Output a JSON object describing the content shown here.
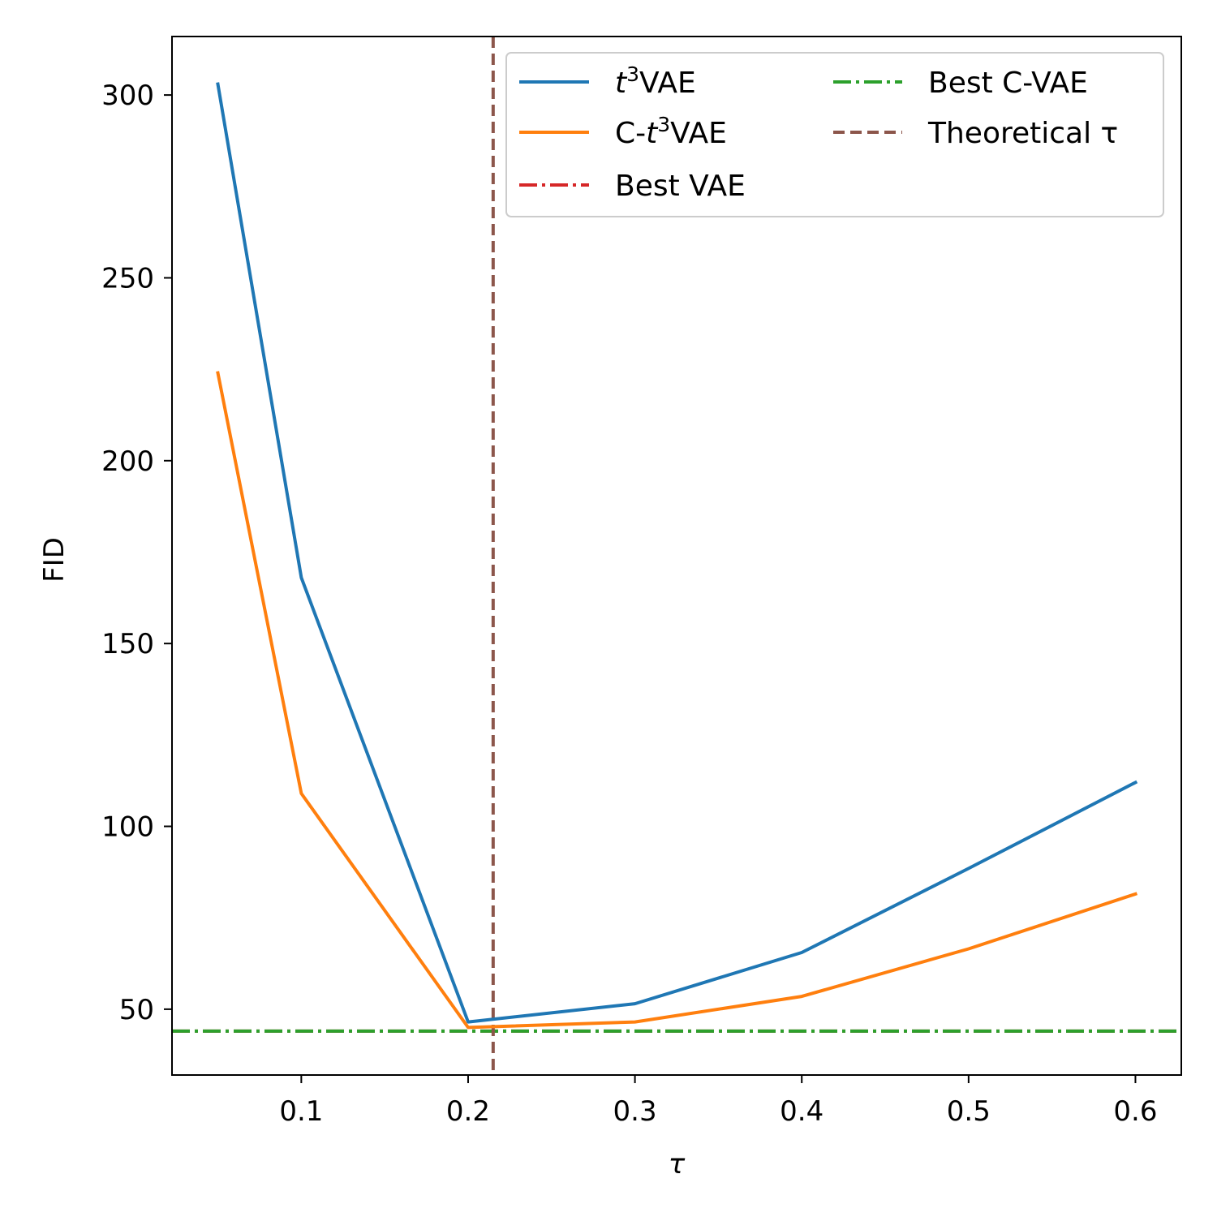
{
  "chart_data": {
    "type": "line",
    "title": "",
    "xlabel": "τ",
    "ylabel": "FID",
    "xlim": [
      0.0225,
      0.6275
    ],
    "ylim": [
      32,
      316
    ],
    "xticks": [
      0.1,
      0.2,
      0.3,
      0.4,
      0.5,
      0.6
    ],
    "xtick_labels": [
      "0.1",
      "0.2",
      "0.3",
      "0.4",
      "0.5",
      "0.6"
    ],
    "yticks": [
      50,
      100,
      150,
      200,
      250,
      300
    ],
    "ytick_labels": [
      "50",
      "100",
      "150",
      "200",
      "250",
      "300"
    ],
    "grid": false,
    "legend_placement": "top-right",
    "x": [
      0.05,
      0.1,
      0.2,
      0.3,
      0.4,
      0.5,
      0.6
    ],
    "series": [
      {
        "name": "t³VAE",
        "label_italic": "t",
        "label_sup": "3",
        "label_rest": "VAE",
        "color": "#1f77b4",
        "style": "solid",
        "values": [
          303,
          168,
          46.5,
          51.5,
          65.5,
          88.5,
          112
        ]
      },
      {
        "name": "C-t³VAE",
        "label_prefix": "C-",
        "label_italic": "t",
        "label_sup": "3",
        "label_rest": "VAE",
        "color": "#ff7f0e",
        "style": "solid",
        "values": [
          224,
          109,
          45,
          46.5,
          53.5,
          66.5,
          81.5
        ]
      }
    ],
    "reference_lines": [
      {
        "name": "Best VAE",
        "orientation": "horizontal",
        "value": 44,
        "color": "#d62728",
        "style": "dashdot"
      },
      {
        "name": "Best C-VAE",
        "orientation": "horizontal",
        "value": 44,
        "color": "#2ca02c",
        "style": "dashdot"
      },
      {
        "name": "Theoretical τ",
        "orientation": "vertical",
        "value": 0.215,
        "color": "#8c564b",
        "style": "dashed"
      }
    ],
    "legend": {
      "columns": 2,
      "entries": [
        "t³VAE",
        "C-t³VAE",
        "Best VAE",
        "Best C-VAE",
        "Theoretical τ"
      ]
    }
  }
}
